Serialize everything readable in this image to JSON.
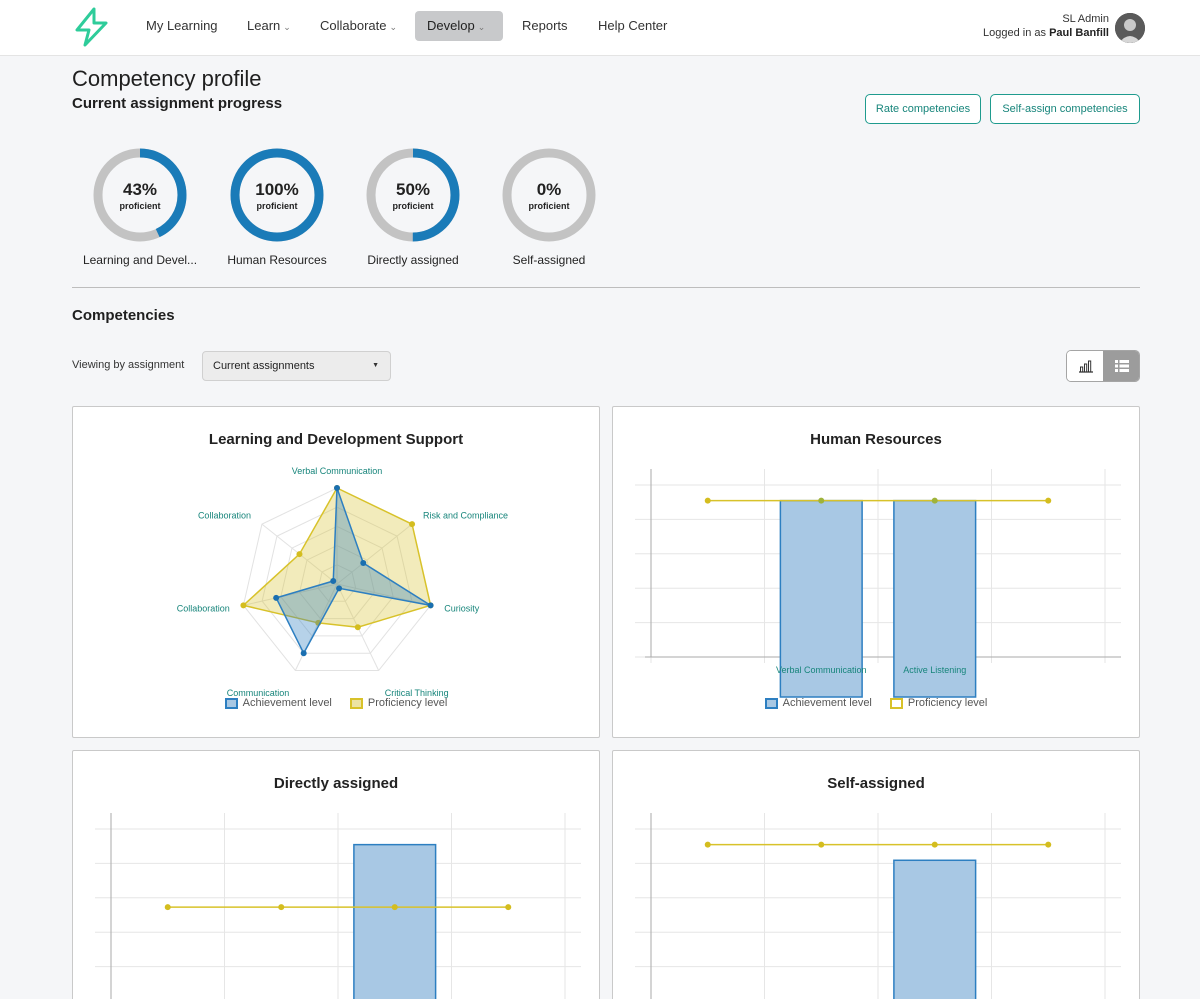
{
  "nav": {
    "items": [
      {
        "label": "My Learning",
        "has_menu": false
      },
      {
        "label": "Learn",
        "has_menu": true
      },
      {
        "label": "Collaborate",
        "has_menu": true
      },
      {
        "label": "Develop",
        "has_menu": true,
        "active": true
      },
      {
        "label": "Reports",
        "has_menu": false
      },
      {
        "label": "Help Center",
        "has_menu": false
      }
    ],
    "user_role": "SL Admin",
    "logged_in_prefix": "Logged in as",
    "user_name": "Paul Banfill"
  },
  "page": {
    "title": "Competency profile",
    "subtitle": "Current assignment progress",
    "rate_button": "Rate competencies",
    "self_assign_button": "Self-assign competencies"
  },
  "progress": [
    {
      "percent": "43%",
      "value": 43,
      "sub": "proficient",
      "label": "Learning and Devel..."
    },
    {
      "percent": "100%",
      "value": 100,
      "sub": "proficient",
      "label": "Human Resources"
    },
    {
      "percent": "50%",
      "value": 50,
      "sub": "proficient",
      "label": "Directly assigned"
    },
    {
      "percent": "0%",
      "value": 0,
      "sub": "proficient",
      "label": "Self-assigned"
    }
  ],
  "competencies": {
    "title": "Competencies",
    "view_label": "Viewing by assignment",
    "view_value": "Current assignments"
  },
  "legend": {
    "achievement": "Achievement level",
    "proficiency": "Proficiency level"
  },
  "colors": {
    "accent": "#1f9b8e",
    "achievement": "#2d7fc1",
    "proficiency": "#d8c22a",
    "donut_track": "#c3c3c3",
    "donut_fill": "#1a7bb8"
  },
  "charts": {
    "radar": {
      "title": "Learning and Development Support",
      "labels": [
        "Verbal Communication",
        "Risk and Compliance",
        "Curiosity",
        "Critical Thinking",
        "Communication",
        "Collaboration",
        "Collaboration"
      ]
    },
    "hr": {
      "title": "Human Resources",
      "categories": [
        "Verbal Communication",
        "Active Listening"
      ]
    },
    "direct": {
      "title": "Directly assigned"
    },
    "self": {
      "title": "Self-assigned"
    }
  },
  "chart_data": [
    {
      "type": "radar",
      "title": "Learning and Development Support",
      "axes": [
        "Verbal Communication",
        "Risk and Compliance",
        "Curiosity",
        "Critical Thinking",
        "Communication",
        "Collaboration",
        "Collaboration"
      ],
      "series": [
        {
          "name": "Achievement level",
          "values": [
            1.0,
            0.35,
            1.0,
            0.05,
            0.8,
            0.65,
            0.05
          ]
        },
        {
          "name": "Proficiency level",
          "values": [
            1.0,
            1.0,
            1.0,
            0.5,
            0.45,
            1.0,
            0.5
          ]
        }
      ]
    },
    {
      "type": "bar",
      "title": "Human Resources",
      "categories": [
        "",
        "Verbal Communication",
        "Active Listening",
        ""
      ],
      "series": [
        {
          "name": "Achievement level",
          "values": [
            null,
            5,
            5,
            null
          ]
        },
        {
          "name": "Proficiency level",
          "values": [
            5,
            5,
            5,
            5
          ]
        }
      ],
      "ylim": [
        0,
        5.5
      ]
    },
    {
      "type": "bar",
      "title": "Directly assigned",
      "categories": [
        "",
        "",
        "",
        ""
      ],
      "series": [
        {
          "name": "Achievement level",
          "values": [
            null,
            null,
            5,
            null
          ]
        },
        {
          "name": "Proficiency level",
          "values": [
            3,
            3,
            3,
            3
          ]
        }
      ],
      "ylim": [
        0,
        5.5
      ]
    },
    {
      "type": "bar",
      "title": "Self-assigned",
      "categories": [
        "",
        "",
        "",
        ""
      ],
      "series": [
        {
          "name": "Achievement level",
          "values": [
            null,
            null,
            4.5,
            null
          ]
        },
        {
          "name": "Proficiency level",
          "values": [
            5,
            5,
            5,
            5
          ]
        }
      ],
      "ylim": [
        0,
        5.5
      ]
    }
  ]
}
